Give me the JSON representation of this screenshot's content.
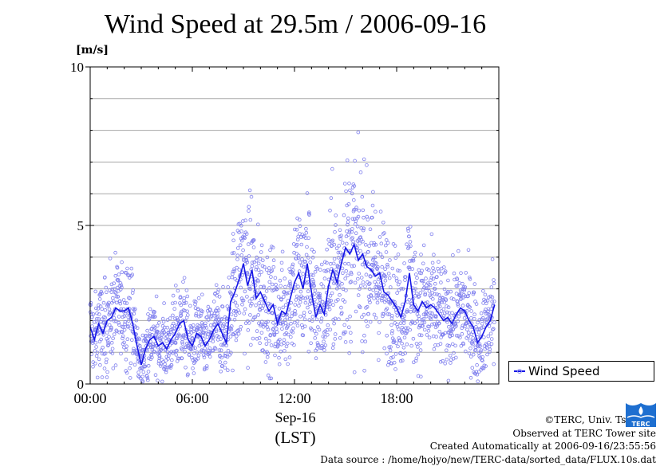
{
  "chart_data": {
    "type": "line",
    "title": "Wind Speed at 29.5m / 2006-09-16",
    "ylabel": "[m/s]",
    "ylim": [
      0,
      10
    ],
    "yticks": [
      "0",
      "5",
      "10"
    ],
    "xlim_hours": [
      0,
      24
    ],
    "xticks": [
      {
        "hour": 0,
        "label": "00:00"
      },
      {
        "hour": 6,
        "label": "06:00"
      },
      {
        "hour": 12,
        "label": "12:00"
      },
      {
        "hour": 18,
        "label": "18:00"
      }
    ],
    "xlabel_date": "Sep-16",
    "xlabel_zone": "(LST)",
    "grid": true,
    "legend_position": "bottom-right-outside",
    "series": [
      {
        "name": "Wind Speed",
        "color": "#1515e6",
        "scatter_color": "#8080ee",
        "x_hours": [
          0.0,
          0.25,
          0.5,
          0.75,
          1.0,
          1.25,
          1.5,
          1.75,
          2.0,
          2.25,
          2.5,
          2.75,
          3.0,
          3.25,
          3.5,
          3.75,
          4.0,
          4.25,
          4.5,
          4.75,
          5.0,
          5.25,
          5.5,
          5.75,
          6.0,
          6.25,
          6.5,
          6.75,
          7.0,
          7.25,
          7.5,
          7.75,
          8.0,
          8.25,
          8.5,
          8.75,
          9.0,
          9.25,
          9.5,
          9.75,
          10.0,
          10.25,
          10.5,
          10.75,
          11.0,
          11.25,
          11.5,
          11.75,
          12.0,
          12.25,
          12.5,
          12.75,
          13.0,
          13.25,
          13.5,
          13.75,
          14.0,
          14.25,
          14.5,
          14.75,
          15.0,
          15.25,
          15.5,
          15.75,
          16.0,
          16.25,
          16.5,
          16.75,
          17.0,
          17.25,
          17.5,
          17.75,
          18.0,
          18.25,
          18.5,
          18.75,
          19.0,
          19.25,
          19.5,
          19.75,
          20.0,
          20.25,
          20.5,
          20.75,
          21.0,
          21.25,
          21.5,
          21.75,
          22.0,
          22.25,
          22.5,
          22.75,
          23.0,
          23.25,
          23.5,
          23.75
        ],
        "values": [
          1.8,
          1.4,
          1.9,
          1.6,
          2.0,
          2.1,
          2.4,
          2.3,
          2.3,
          2.4,
          1.9,
          1.2,
          0.6,
          1.1,
          1.4,
          1.5,
          1.2,
          1.3,
          1.1,
          1.4,
          1.6,
          1.9,
          2.0,
          1.4,
          1.2,
          1.6,
          1.5,
          1.2,
          1.4,
          1.7,
          1.9,
          1.6,
          1.3,
          2.6,
          2.9,
          3.3,
          3.8,
          3.1,
          3.6,
          2.7,
          2.9,
          2.6,
          2.3,
          2.5,
          1.9,
          2.3,
          2.2,
          2.7,
          3.2,
          3.5,
          3.0,
          3.8,
          2.9,
          2.1,
          2.5,
          2.2,
          3.1,
          3.6,
          3.2,
          3.8,
          4.3,
          4.1,
          4.4,
          3.9,
          4.1,
          3.7,
          3.6,
          3.4,
          3.5,
          2.9,
          2.8,
          2.6,
          2.4,
          2.1,
          2.6,
          3.5,
          2.5,
          2.3,
          2.6,
          2.4,
          2.5,
          2.4,
          2.2,
          2.0,
          2.1,
          1.9,
          2.2,
          2.4,
          2.3,
          2.0,
          1.8,
          1.3,
          1.5,
          1.8,
          2.0,
          2.5
        ]
      }
    ],
    "legend_label": "Wind Speed"
  },
  "credits": {
    "copyright": "©TERC, Univ. Tsukuba",
    "observed": "Observed at TERC Tower site",
    "created": "Created Automatically at 2006-09-16/23:55:56",
    "source": "Data source : /home/hojyo/new/TERC-data/sorted_data/FLUX.10s.dat"
  },
  "logo": {
    "text": "TERC",
    "color": "#1e6fd0"
  }
}
